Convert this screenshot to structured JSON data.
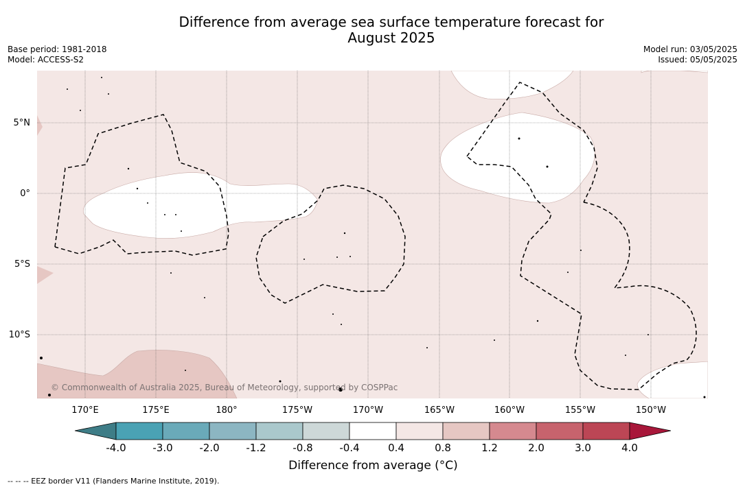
{
  "title_line1": "Difference from average sea surface temperature forecast for",
  "title_line2": "August 2025",
  "meta_left": {
    "base_period": "Base period: 1981-2018",
    "model": "Model: ACCESS-S2"
  },
  "meta_right": {
    "model_run": "Model run: 03/05/2025",
    "issued": "Issued: 05/05/2025"
  },
  "map": {
    "lat_labels": [
      "5°N",
      "0°",
      "5°S",
      "10°S"
    ],
    "lon_labels": [
      "170°E",
      "175°E",
      "180°",
      "175°W",
      "170°W",
      "165°W",
      "160°W",
      "155°W",
      "150°W"
    ],
    "copyright": "© Commonwealth of Australia 2025, Bureau of Meteorology, supported by COSPPac",
    "colors": {
      "anomaly_0_4_to_0_8": "#f4e7e5",
      "anomaly_0_8_to_1_2": "#e6c7c3",
      "neutral": "#ffffff"
    }
  },
  "colorbar": {
    "ticks": [
      "-4.0",
      "-3.0",
      "-2.0",
      "-1.2",
      "-0.8",
      "-0.4",
      "0.4",
      "0.8",
      "1.2",
      "2.0",
      "3.0",
      "4.0"
    ],
    "colors": [
      "#3e7d87",
      "#4aa2b4",
      "#6aaab9",
      "#8cb6c2",
      "#aac8cc",
      "#cdd8d8",
      "#ffffff",
      "#f4e7e5",
      "#e6c7c3",
      "#d5898f",
      "#c7636d",
      "#bc4655",
      "#a8173a"
    ],
    "title": "Difference from average (°C)"
  },
  "footnote": "-- -- -- EEZ border V11 (Flanders Marine Institute, 2019)."
}
